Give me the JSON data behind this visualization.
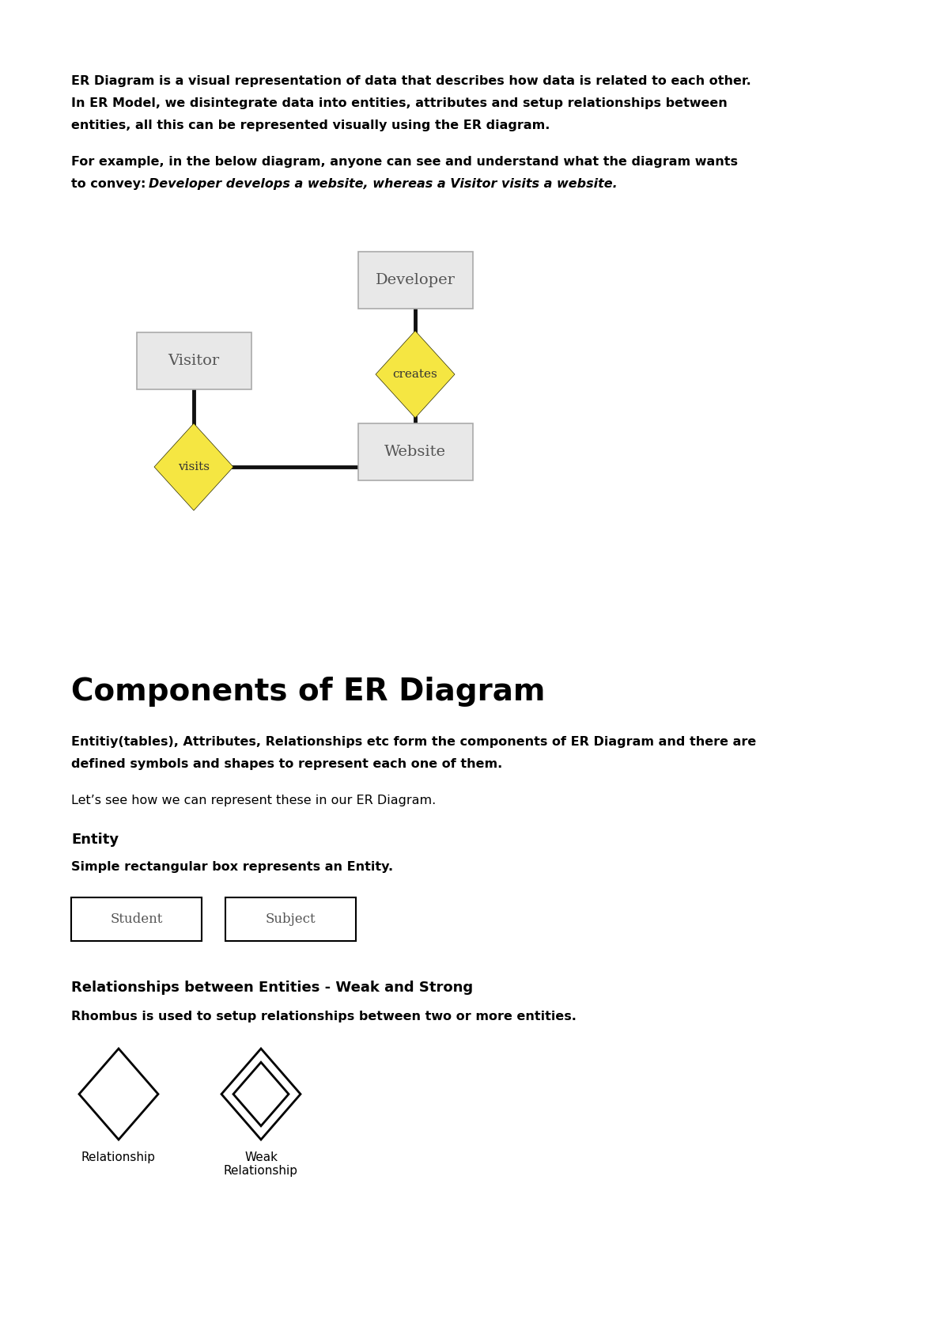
{
  "bg_color": "#ffffff",
  "page_width": 12.0,
  "page_height": 16.97,
  "text_color": "#000000",
  "para1_line1": "ER Diagram is a visual representation of data that describes how data is related to each other.",
  "para1_line2": "In ER Model, we disintegrate data into entities, attributes and setup relationships between",
  "para1_line3": "entities, all this can be represented visually using the ER diagram.",
  "para2_line1": "For example, in the below diagram, anyone can see and understand what the diagram wants",
  "para2_line2_bold": "to convey: ",
  "para2_line2_italic": "Developer develops a website, whereas a Visitor visits a website.",
  "entity_box_color": "#e8e8e8",
  "diamond_color": "#f5e642",
  "diamond_edge": "#2a2a00",
  "entity_edge": "#aaaaaa",
  "section_title": "Components of ER Diagram",
  "components_para1_line1": "Entitiy(tables), Attributes, Relationships etc form the components of ER Diagram and there are",
  "components_para1_line2": "defined symbols and shapes to represent each one of them.",
  "components_para2": "Let’s see how we can represent these in our ER Diagram.",
  "entity_heading": "Entity",
  "entity_desc": "Simple rectangular box represents an Entity.",
  "entity_boxes": [
    "Student",
    "Subject"
  ],
  "rel_heading": "Relationships between Entities - Weak and Strong",
  "rel_desc": "Rhombus is used to setup relationships between two or more entities.",
  "rel_labels": [
    "Relationship",
    "Weak\nRelationship"
  ],
  "font_body": 11.5,
  "font_section": 28,
  "font_subhead": 13
}
